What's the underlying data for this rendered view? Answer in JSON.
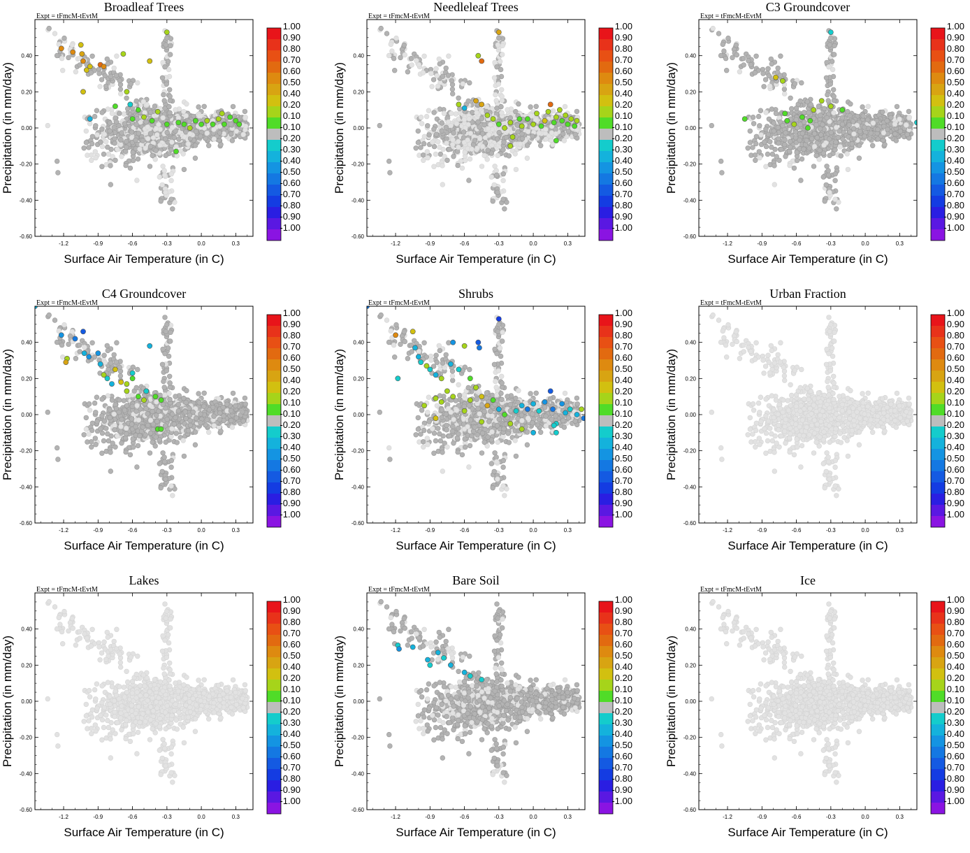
{
  "figure": {
    "experiment_label": "Expt = tFmcM-tEvtM",
    "xlabel": "Surface Air Temperature (in C)",
    "ylabel": "Precipitation (in mm/day)"
  },
  "colorbar": {
    "labels": [
      "1.00",
      "0.90",
      "0.80",
      "0.70",
      "0.60",
      "0.50",
      "0.40",
      "0.20",
      "0.10",
      "-0.10",
      "-0.20",
      "-0.30",
      "-0.40",
      "-0.50",
      "-0.60",
      "-0.70",
      "-0.80",
      "-0.90",
      "-1.00"
    ],
    "colors": [
      "#e8141a",
      "#e8321a",
      "#e85014",
      "#e26a10",
      "#de8a10",
      "#d8a412",
      "#d2c010",
      "#a6d41a",
      "#50dc28",
      "#bdbdbd",
      "#14cccc",
      "#14b2dc",
      "#1494e2",
      "#1478e2",
      "#145ae2",
      "#143ce2",
      "#2a1ee2",
      "#5a18e2",
      "#8a14e2"
    ]
  },
  "chart_data": [
    {
      "type": "scatter",
      "title": "Broadleaf Trees",
      "xlabel": "Surface Air Temperature (in C)",
      "ylabel": "Precipitation (in mm/day)",
      "xlim": [
        -1.45,
        0.45
      ],
      "ylim": [
        -0.6,
        0.6
      ],
      "xticks": [
        "-1.2",
        "-0.9",
        "-0.6",
        "-0.3",
        "0.0",
        "0.3"
      ],
      "yticks": [
        "-0.60",
        "-0.40",
        "-0.20",
        "0.00",
        "0.20",
        "0.40"
      ],
      "colored_points": [
        [
          -1.22,
          0.44,
          0.6
        ],
        [
          -1.12,
          0.42,
          0.6
        ],
        [
          -1.05,
          0.46,
          0.4
        ],
        [
          -1.04,
          0.41,
          0.5
        ],
        [
          -1.03,
          0.37,
          0.6
        ],
        [
          -1.0,
          0.32,
          0.4
        ],
        [
          -0.97,
          0.34,
          0.4
        ],
        [
          -0.88,
          0.35,
          0.7
        ],
        [
          -0.85,
          0.34,
          0.6
        ],
        [
          -1.03,
          0.2,
          0.4
        ],
        [
          -0.68,
          0.41,
          0.3
        ],
        [
          -0.45,
          0.37,
          0.4
        ],
        [
          -0.3,
          0.53,
          0.2
        ],
        [
          -0.65,
          0.2,
          0.2
        ],
        [
          -0.62,
          0.13,
          -0.2
        ],
        [
          -0.55,
          0.1,
          0.1
        ],
        [
          -0.5,
          0.06,
          0.2
        ],
        [
          -0.43,
          0.04,
          0.1
        ],
        [
          -0.38,
          0.09,
          0.3
        ],
        [
          -0.3,
          0.02,
          0.1
        ],
        [
          -0.22,
          -0.13,
          0.1
        ],
        [
          -0.2,
          0.03,
          0.1
        ],
        [
          -0.15,
          0.02,
          0.1
        ],
        [
          -0.1,
          0.0,
          0.3
        ],
        [
          -0.05,
          0.04,
          0.1
        ],
        [
          0.0,
          0.02,
          0.1
        ],
        [
          0.05,
          0.04,
          0.3
        ],
        [
          0.1,
          0.02,
          0.1
        ],
        [
          0.15,
          0.05,
          0.2
        ],
        [
          0.18,
          0.08,
          0.2
        ],
        [
          0.2,
          0.02,
          0.1
        ],
        [
          0.25,
          0.06,
          0.1
        ],
        [
          0.3,
          0.04,
          0.1
        ],
        [
          0.33,
          0.02,
          0.1
        ],
        [
          -0.97,
          0.05,
          -0.3
        ],
        [
          -0.6,
          0.05,
          0.1
        ],
        [
          -0.75,
          0.12,
          0.1
        ]
      ]
    },
    {
      "type": "scatter",
      "title": "Needleleaf Trees",
      "xlabel": "Surface Air Temperature (in C)",
      "ylabel": "Precipitation (in mm/day)",
      "xlim": [
        -1.45,
        0.45
      ],
      "ylim": [
        -0.6,
        0.6
      ],
      "xticks": [
        "-1.2",
        "-0.9",
        "-0.6",
        "-0.3",
        "0.0",
        "0.3"
      ],
      "yticks": [
        "-0.60",
        "-0.40",
        "-0.20",
        "0.00",
        "0.20",
        "0.40"
      ],
      "colored_points": [
        [
          -0.3,
          0.53,
          0.5
        ],
        [
          -0.48,
          0.4,
          0.2
        ],
        [
          -0.45,
          0.37,
          0.7
        ],
        [
          -0.65,
          0.13,
          0.2
        ],
        [
          -0.6,
          0.11,
          -0.3
        ],
        [
          -0.5,
          0.15,
          0.5
        ],
        [
          -0.45,
          0.13,
          0.5
        ],
        [
          -0.4,
          0.07,
          0.3
        ],
        [
          -0.35,
          0.05,
          0.2
        ],
        [
          -0.3,
          0.02,
          0.1
        ],
        [
          -0.25,
          0.0,
          0.3
        ],
        [
          -0.2,
          0.03,
          0.2
        ],
        [
          -0.18,
          -0.05,
          0.2
        ],
        [
          -0.12,
          0.05,
          0.1
        ],
        [
          -0.1,
          0.01,
          0.3
        ],
        [
          -0.05,
          0.05,
          0.1
        ],
        [
          0.0,
          0.02,
          0.3
        ],
        [
          0.03,
          0.08,
          0.2
        ],
        [
          0.07,
          0.01,
          0.1
        ],
        [
          0.1,
          0.04,
          0.4
        ],
        [
          0.13,
          0.09,
          0.2
        ],
        [
          0.15,
          0.13,
          0.7
        ],
        [
          0.18,
          0.03,
          0.1
        ],
        [
          0.2,
          0.06,
          0.3
        ],
        [
          0.23,
          0.1,
          0.2
        ],
        [
          0.25,
          0.04,
          0.1
        ],
        [
          0.28,
          0.07,
          0.3
        ],
        [
          0.3,
          0.02,
          0.1
        ],
        [
          0.33,
          0.05,
          0.2
        ],
        [
          0.36,
          0.01,
          0.1
        ],
        [
          0.38,
          0.04,
          0.3
        ],
        [
          0.2,
          -0.07,
          0.1
        ],
        [
          -0.2,
          -0.1,
          0.3
        ]
      ]
    },
    {
      "type": "scatter",
      "title": "C3 Groundcover",
      "xlabel": "Surface Air Temperature (in C)",
      "ylabel": "Precipitation (in mm/day)",
      "xlim": [
        -1.45,
        0.45
      ],
      "ylim": [
        -0.6,
        0.6
      ],
      "xticks": [
        "-1.2",
        "-0.9",
        "-0.6",
        "-0.3",
        "0.0",
        "0.3"
      ],
      "yticks": [
        "-0.60",
        "-0.40",
        "-0.20",
        "0.00",
        "0.20",
        "0.40"
      ],
      "colored_points": [
        [
          -0.3,
          0.53,
          -0.2
        ],
        [
          -0.78,
          0.28,
          0.4
        ],
        [
          -0.72,
          0.26,
          0.3
        ],
        [
          -1.05,
          0.05,
          0.1
        ],
        [
          -0.7,
          0.08,
          0.1
        ],
        [
          -0.68,
          0.04,
          0.1
        ],
        [
          -0.62,
          0.02,
          0.2
        ],
        [
          -0.55,
          0.06,
          0.1
        ],
        [
          -0.5,
          0.0,
          0.1
        ],
        [
          -0.48,
          0.04,
          0.1
        ],
        [
          -0.45,
          0.1,
          0.2
        ],
        [
          -0.38,
          0.15,
          0.2
        ],
        [
          -0.3,
          0.12,
          0.3
        ],
        [
          -0.2,
          0.1,
          0.1
        ],
        [
          0.45,
          0.03,
          -0.2
        ]
      ]
    },
    {
      "type": "scatter",
      "title": "C4 Groundcover",
      "xlabel": "Surface Air Temperature (in C)",
      "ylabel": "Precipitation (in mm/day)",
      "xlim": [
        -1.45,
        0.45
      ],
      "ylim": [
        -0.6,
        0.6
      ],
      "xticks": [
        "-1.2",
        "-0.9",
        "-0.6",
        "-0.3",
        "0.0",
        "0.3"
      ],
      "yticks": [
        "-0.60",
        "-0.40",
        "-0.20",
        "0.00",
        "0.20",
        "0.40"
      ],
      "colored_points": [
        [
          -1.45,
          0.6,
          -0.3
        ],
        [
          -1.22,
          0.44,
          -0.4
        ],
        [
          -1.1,
          0.42,
          -0.5
        ],
        [
          -1.03,
          0.46,
          -0.6
        ],
        [
          -1.02,
          0.34,
          -0.3
        ],
        [
          -0.98,
          0.32,
          -0.4
        ],
        [
          -0.9,
          0.34,
          -0.4
        ],
        [
          -0.88,
          0.28,
          -0.3
        ],
        [
          -0.85,
          0.22,
          0.3
        ],
        [
          -1.17,
          0.31,
          0.2
        ],
        [
          -1.18,
          0.29,
          0.5
        ],
        [
          -0.82,
          0.2,
          -0.2
        ],
        [
          -0.78,
          0.17,
          -0.3
        ],
        [
          -0.7,
          0.18,
          0.4
        ],
        [
          -0.65,
          0.17,
          0.3
        ],
        [
          -0.6,
          0.2,
          0.1
        ],
        [
          -0.55,
          0.1,
          0.1
        ],
        [
          -0.5,
          0.08,
          0.2
        ],
        [
          -0.48,
          0.13,
          -0.2
        ],
        [
          -0.45,
          0.38,
          -0.3
        ],
        [
          -0.4,
          0.1,
          0.1
        ],
        [
          -0.35,
          0.08,
          0.1
        ],
        [
          -0.38,
          -0.08,
          0.1
        ],
        [
          -0.35,
          -0.08,
          0.1
        ],
        [
          -0.6,
          0.23,
          -0.2
        ],
        [
          -0.75,
          0.25,
          0.4
        ],
        [
          -0.65,
          0.13,
          0.2
        ]
      ]
    },
    {
      "type": "scatter",
      "title": "Shrubs",
      "xlabel": "Surface Air Temperature (in C)",
      "ylabel": "Precipitation (in mm/day)",
      "xlim": [
        -1.45,
        0.45
      ],
      "ylim": [
        -0.6,
        0.6
      ],
      "xticks": [
        "-1.2",
        "-0.9",
        "-0.6",
        "-0.3",
        "0.0",
        "0.3"
      ],
      "yticks": [
        "-0.60",
        "-0.40",
        "-0.20",
        "0.00",
        "0.20",
        "0.40"
      ],
      "colored_points": [
        [
          -1.45,
          0.6,
          -0.5
        ],
        [
          -1.2,
          0.44,
          0.6
        ],
        [
          -0.3,
          0.53,
          -0.7
        ],
        [
          -1.05,
          0.46,
          0.4
        ],
        [
          -1.03,
          0.37,
          -0.3
        ],
        [
          -1.0,
          0.32,
          -0.3
        ],
        [
          -0.98,
          0.29,
          -0.2
        ],
        [
          -0.93,
          0.27,
          0.3
        ],
        [
          -0.9,
          0.25,
          -0.2
        ],
        [
          -0.85,
          0.22,
          -0.3
        ],
        [
          -0.8,
          0.2,
          0.2
        ],
        [
          -0.7,
          0.4,
          -0.4
        ],
        [
          -0.6,
          0.38,
          0.2
        ],
        [
          -0.48,
          0.4,
          -0.6
        ],
        [
          -0.47,
          0.37,
          -0.5
        ],
        [
          -0.72,
          0.28,
          -0.3
        ],
        [
          -0.65,
          0.25,
          -0.2
        ],
        [
          -0.55,
          0.2,
          0.1
        ],
        [
          -0.5,
          0.15,
          0.3
        ],
        [
          -0.45,
          0.1,
          0.4
        ],
        [
          -0.4,
          0.05,
          0.5
        ],
        [
          -0.35,
          0.08,
          0.1
        ],
        [
          -0.3,
          0.03,
          -0.3
        ],
        [
          -0.25,
          0.0,
          0.1
        ],
        [
          -0.2,
          -0.05,
          0.2
        ],
        [
          -0.15,
          0.02,
          -0.2
        ],
        [
          -0.1,
          0.05,
          -0.3
        ],
        [
          -0.05,
          0.03,
          -0.5
        ],
        [
          0.0,
          0.06,
          -0.3
        ],
        [
          0.05,
          0.02,
          -0.2
        ],
        [
          0.1,
          0.07,
          -0.4
        ],
        [
          0.15,
          0.13,
          -0.6
        ],
        [
          0.17,
          0.03,
          -0.5
        ],
        [
          0.2,
          -0.05,
          -0.2
        ],
        [
          0.25,
          0.06,
          -0.4
        ],
        [
          0.28,
          0.01,
          -0.3
        ],
        [
          0.32,
          0.03,
          -0.2
        ],
        [
          0.38,
          0.0,
          -0.3
        ],
        [
          0.42,
          0.03,
          0.3
        ],
        [
          0.44,
          -0.02,
          -0.5
        ],
        [
          0.0,
          -0.1,
          -0.3
        ],
        [
          -0.1,
          -0.08,
          0.2
        ],
        [
          -0.85,
          0.09,
          0.3
        ],
        [
          -0.8,
          0.07,
          0.3
        ],
        [
          -0.75,
          0.13,
          0.3
        ],
        [
          -0.7,
          0.1,
          0.2
        ],
        [
          -0.95,
          0.05,
          0.2
        ],
        [
          -0.85,
          -0.02,
          0.4
        ],
        [
          -0.6,
          0.02,
          0.3
        ],
        [
          -0.55,
          0.08,
          0.3
        ],
        [
          -0.45,
          -0.04,
          0.2
        ],
        [
          0.2,
          -0.1,
          -0.2
        ],
        [
          0.18,
          -0.06,
          -0.2
        ],
        [
          -1.18,
          0.2,
          -0.2
        ]
      ]
    },
    {
      "type": "scatter",
      "title": "Urban Fraction",
      "xlabel": "Surface Air Temperature (in C)",
      "ylabel": "Precipitation (in mm/day)",
      "xlim": [
        -1.45,
        0.45
      ],
      "ylim": [
        -0.6,
        0.6
      ],
      "xticks": [
        "-1.2",
        "-0.9",
        "-0.6",
        "-0.3",
        "0.0",
        "0.3"
      ],
      "yticks": [
        "-0.60",
        "-0.40",
        "-0.20",
        "0.00",
        "0.20",
        "0.40"
      ],
      "colored_points": []
    },
    {
      "type": "scatter",
      "title": "Lakes",
      "xlabel": "Surface Air Temperature (in C)",
      "ylabel": "Precipitation (in mm/day)",
      "xlim": [
        -1.45,
        0.45
      ],
      "ylim": [
        -0.6,
        0.6
      ],
      "xticks": [
        "-1.2",
        "-0.9",
        "-0.6",
        "-0.3",
        "0.0",
        "0.3"
      ],
      "yticks": [
        "-0.60",
        "-0.40",
        "-0.20",
        "0.00",
        "0.20",
        "0.40"
      ],
      "colored_points": []
    },
    {
      "type": "scatter",
      "title": "Bare Soil",
      "xlabel": "Surface Air Temperature (in C)",
      "ylabel": "Precipitation (in mm/day)",
      "xlim": [
        -1.45,
        0.45
      ],
      "ylim": [
        -0.6,
        0.6
      ],
      "xticks": [
        "-1.2",
        "-0.9",
        "-0.6",
        "-0.3",
        "0.0",
        "0.3"
      ],
      "yticks": [
        "-0.60",
        "-0.40",
        "-0.20",
        "0.00",
        "0.20",
        "0.40"
      ],
      "colored_points": [
        [
          -1.18,
          0.31,
          -0.2
        ],
        [
          -1.17,
          0.29,
          -0.4
        ],
        [
          -1.05,
          0.3,
          -0.3
        ],
        [
          -0.92,
          0.23,
          -0.3
        ],
        [
          -0.9,
          0.2,
          -0.2
        ],
        [
          -0.83,
          0.27,
          -0.3
        ],
        [
          -0.78,
          0.24,
          -0.2
        ],
        [
          -0.72,
          0.2,
          -0.3
        ],
        [
          -0.6,
          0.16,
          -0.3
        ],
        [
          -0.55,
          0.14,
          -0.2
        ],
        [
          -0.45,
          0.12,
          -0.2
        ]
      ]
    },
    {
      "type": "scatter",
      "title": "Ice",
      "xlabel": "Surface Air Temperature (in C)",
      "ylabel": "Precipitation (in mm/day)",
      "xlim": [
        -1.45,
        0.45
      ],
      "ylim": [
        -0.6,
        0.6
      ],
      "xticks": [
        "-1.2",
        "-0.9",
        "-0.6",
        "-0.3",
        "0.0",
        "0.3"
      ],
      "yticks": [
        "-0.60",
        "-0.40",
        "-0.20",
        "0.00",
        "0.20",
        "0.40"
      ],
      "colored_points": []
    }
  ]
}
